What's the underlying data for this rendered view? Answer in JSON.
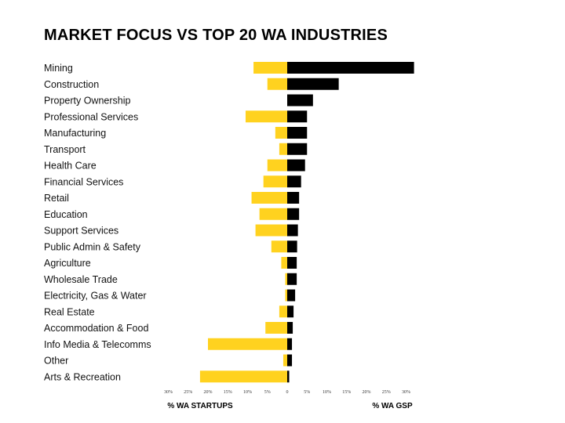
{
  "chart_data": {
    "type": "bar",
    "title": "MARKET FOCUS VS TOP 20 WA INDUSTRIES",
    "categories": [
      "Mining",
      "Construction",
      "Property Ownership",
      "Professional Services",
      "Manufacturing",
      "Transport",
      "Health Care",
      "Financial Services",
      "Retail",
      "Education",
      "Support Services",
      "Public Admin & Safety",
      "Agriculture",
      "Wholesale Trade",
      "Electricity, Gas & Water",
      "Real Estate",
      "Accommodation & Food",
      "Info Media & Telecomms",
      "Other",
      "Arts & Recreation"
    ],
    "series": [
      {
        "name": "% WA STARTUPS",
        "side": "left",
        "color": "#FFD21F",
        "values": [
          8.5,
          5,
          0,
          10.5,
          3,
          2,
          5,
          6,
          9,
          7,
          8,
          4,
          1.5,
          0.5,
          0.5,
          2,
          5.5,
          20,
          1,
          22
        ]
      },
      {
        "name": "% WA GSP",
        "side": "right",
        "color": "#000000",
        "values": [
          32,
          13,
          6.5,
          5,
          5,
          5,
          4.5,
          3.5,
          3,
          3,
          2.7,
          2.5,
          2.4,
          2.4,
          2,
          1.6,
          1.4,
          1.2,
          1.2,
          0.5
        ]
      }
    ],
    "xticks": [
      "30%",
      "25%",
      "20%",
      "15%",
      "10%",
      "5%",
      "0",
      "5%",
      "10%",
      "15%",
      "20%",
      "25%",
      "30%"
    ],
    "xlim": [
      -30,
      30
    ],
    "xlabel_left": "% WA STARTUPS",
    "xlabel_right": "% WA GSP",
    "grid": false,
    "legend": "none"
  }
}
